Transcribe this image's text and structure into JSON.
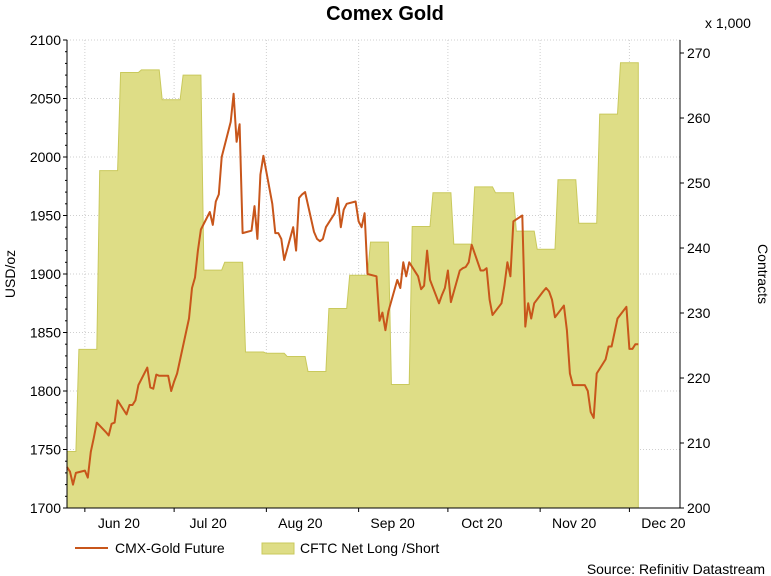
{
  "chart_data": {
    "type": "line",
    "title": "Comex Gold",
    "ylabel": "USD/oz",
    "y2label": "Contracts",
    "y2_multiplier_label": "x 1,000",
    "source": "Source: Refinitiv Datastream",
    "ylim": [
      1700,
      2100
    ],
    "y2lim": [
      200,
      272
    ],
    "yticks": [
      1700,
      1750,
      1800,
      1850,
      1900,
      1950,
      2000,
      2050,
      2100
    ],
    "y2ticks": [
      200,
      210,
      220,
      230,
      240,
      250,
      260,
      270
    ],
    "xlim": [
      "2020-05-26",
      "2020-12-18"
    ],
    "xticks": [
      {
        "label": "Jun 20",
        "date": "2020-06-01"
      },
      {
        "label": "Jul 20",
        "date": "2020-07-01"
      },
      {
        "label": "Aug 20",
        "date": "2020-08-01"
      },
      {
        "label": "Sep 20",
        "date": "2020-09-01"
      },
      {
        "label": "Oct 20",
        "date": "2020-10-01"
      },
      {
        "label": "Nov 20",
        "date": "2020-11-01"
      },
      {
        "label": "Dec 20",
        "date": "2020-12-01"
      }
    ],
    "grid": true,
    "legend_position": "bottom",
    "colors": {
      "line": "#c8561b",
      "area_fill": "#dedd86",
      "area_edge": "#c9c95c",
      "grid": "#cfcfcf"
    },
    "series": [
      {
        "name": "CMX-Gold Future",
        "type": "line",
        "axis": "left",
        "points": [
          [
            "2020-05-26",
            1735
          ],
          [
            "2020-05-27",
            1731
          ],
          [
            "2020-05-28",
            1720
          ],
          [
            "2020-05-29",
            1730
          ],
          [
            "2020-06-01",
            1732
          ],
          [
            "2020-06-02",
            1726
          ],
          [
            "2020-06-03",
            1748
          ],
          [
            "2020-06-04",
            1760
          ],
          [
            "2020-06-05",
            1773
          ],
          [
            "2020-06-08",
            1765
          ],
          [
            "2020-06-09",
            1762
          ],
          [
            "2020-06-10",
            1772
          ],
          [
            "2020-06-11",
            1773
          ],
          [
            "2020-06-12",
            1792
          ],
          [
            "2020-06-15",
            1780
          ],
          [
            "2020-06-16",
            1788
          ],
          [
            "2020-06-17",
            1788
          ],
          [
            "2020-06-18",
            1792
          ],
          [
            "2020-06-19",
            1805
          ],
          [
            "2020-06-22",
            1820
          ],
          [
            "2020-06-23",
            1803
          ],
          [
            "2020-06-24",
            1802
          ],
          [
            "2020-06-25",
            1814
          ],
          [
            "2020-06-26",
            1813
          ],
          [
            "2020-06-29",
            1813
          ],
          [
            "2020-06-30",
            1800
          ],
          [
            "2020-07-01",
            1808
          ],
          [
            "2020-07-02",
            1815
          ],
          [
            "2020-07-06",
            1862
          ],
          [
            "2020-07-07",
            1888
          ],
          [
            "2020-07-08",
            1897
          ],
          [
            "2020-07-09",
            1920
          ],
          [
            "2020-07-10",
            1938
          ],
          [
            "2020-07-13",
            1953
          ],
          [
            "2020-07-14",
            1942
          ],
          [
            "2020-07-15",
            1962
          ],
          [
            "2020-07-16",
            1968
          ],
          [
            "2020-07-17",
            2000
          ],
          [
            "2020-07-20",
            2030
          ],
          [
            "2020-07-21",
            2054
          ],
          [
            "2020-07-22",
            2013
          ],
          [
            "2020-07-23",
            2028
          ],
          [
            "2020-07-24",
            1935
          ],
          [
            "2020-07-27",
            1937
          ],
          [
            "2020-07-28",
            1958
          ],
          [
            "2020-07-29",
            1930
          ],
          [
            "2020-07-30",
            1985
          ],
          [
            "2020-07-31",
            2001
          ],
          [
            "2020-08-03",
            1960
          ],
          [
            "2020-08-04",
            1935
          ],
          [
            "2020-08-05",
            1935
          ],
          [
            "2020-08-06",
            1930
          ],
          [
            "2020-08-07",
            1912
          ],
          [
            "2020-08-10",
            1940
          ],
          [
            "2020-08-11",
            1920
          ],
          [
            "2020-08-12",
            1965
          ],
          [
            "2020-08-13",
            1968
          ],
          [
            "2020-08-14",
            1970
          ],
          [
            "2020-08-17",
            1936
          ],
          [
            "2020-08-18",
            1930
          ],
          [
            "2020-08-19",
            1928
          ],
          [
            "2020-08-20",
            1930
          ],
          [
            "2020-08-21",
            1940
          ],
          [
            "2020-08-24",
            1952
          ],
          [
            "2020-08-25",
            1965
          ],
          [
            "2020-08-26",
            1940
          ],
          [
            "2020-08-27",
            1955
          ],
          [
            "2020-08-28",
            1960
          ],
          [
            "2020-08-31",
            1962
          ],
          [
            "2020-09-01",
            1945
          ],
          [
            "2020-09-02",
            1940
          ],
          [
            "2020-09-03",
            1952
          ],
          [
            "2020-09-04",
            1900
          ],
          [
            "2020-09-07",
            1898
          ],
          [
            "2020-09-08",
            1860
          ],
          [
            "2020-09-09",
            1867
          ],
          [
            "2020-09-10",
            1852
          ],
          [
            "2020-09-11",
            1868
          ],
          [
            "2020-09-14",
            1895
          ],
          [
            "2020-09-15",
            1888
          ],
          [
            "2020-09-16",
            1910
          ],
          [
            "2020-09-17",
            1898
          ],
          [
            "2020-09-18",
            1910
          ],
          [
            "2020-09-21",
            1898
          ],
          [
            "2020-09-22",
            1887
          ],
          [
            "2020-09-23",
            1890
          ],
          [
            "2020-09-24",
            1920
          ],
          [
            "2020-09-25",
            1895
          ],
          [
            "2020-09-28",
            1875
          ],
          [
            "2020-09-29",
            1882
          ],
          [
            "2020-09-30",
            1888
          ],
          [
            "2020-10-01",
            1903
          ],
          [
            "2020-10-02",
            1876
          ],
          [
            "2020-10-05",
            1903
          ],
          [
            "2020-10-06",
            1905
          ],
          [
            "2020-10-07",
            1906
          ],
          [
            "2020-10-08",
            1910
          ],
          [
            "2020-10-09",
            1925
          ],
          [
            "2020-10-12",
            1903
          ],
          [
            "2020-10-13",
            1903
          ],
          [
            "2020-10-14",
            1905
          ],
          [
            "2020-10-15",
            1878
          ],
          [
            "2020-10-16",
            1865
          ],
          [
            "2020-10-19",
            1875
          ],
          [
            "2020-10-20",
            1890
          ],
          [
            "2020-10-21",
            1910
          ],
          [
            "2020-10-22",
            1898
          ],
          [
            "2020-10-23",
            1945
          ],
          [
            "2020-10-26",
            1950
          ],
          [
            "2020-10-27",
            1855
          ],
          [
            "2020-10-28",
            1875
          ],
          [
            "2020-10-29",
            1862
          ],
          [
            "2020-10-30",
            1875
          ],
          [
            "2020-11-02",
            1885
          ],
          [
            "2020-11-03",
            1888
          ],
          [
            "2020-11-04",
            1885
          ],
          [
            "2020-11-05",
            1878
          ],
          [
            "2020-11-06",
            1863
          ],
          [
            "2020-11-09",
            1873
          ],
          [
            "2020-11-10",
            1852
          ],
          [
            "2020-11-11",
            1815
          ],
          [
            "2020-11-12",
            1805
          ],
          [
            "2020-11-13",
            1805
          ],
          [
            "2020-11-16",
            1805
          ],
          [
            "2020-11-17",
            1800
          ],
          [
            "2020-11-18",
            1782
          ],
          [
            "2020-11-19",
            1777
          ],
          [
            "2020-11-20",
            1815
          ],
          [
            "2020-11-23",
            1827
          ],
          [
            "2020-11-24",
            1838
          ],
          [
            "2020-11-25",
            1838
          ],
          [
            "2020-11-27",
            1862
          ],
          [
            "2020-11-30",
            1872
          ],
          [
            "2020-12-01",
            1836
          ],
          [
            "2020-12-02",
            1836
          ],
          [
            "2020-12-03",
            1840
          ],
          [
            "2020-12-04",
            1840
          ]
        ]
      },
      {
        "name": "CFTC Net Long /Short",
        "type": "area",
        "axis": "right",
        "step": true,
        "points": [
          [
            "2020-05-26",
            208.7
          ],
          [
            "2020-05-29",
            208.7
          ],
          [
            "2020-05-30",
            224.4
          ],
          [
            "2020-06-05",
            224.4
          ],
          [
            "2020-06-06",
            251.9
          ],
          [
            "2020-06-12",
            251.9
          ],
          [
            "2020-06-13",
            267.0
          ],
          [
            "2020-06-19",
            267.0
          ],
          [
            "2020-06-20",
            267.4
          ],
          [
            "2020-06-26",
            267.4
          ],
          [
            "2020-06-27",
            262.8
          ],
          [
            "2020-07-03",
            262.8
          ],
          [
            "2020-07-04",
            266.6
          ],
          [
            "2020-07-10",
            266.6
          ],
          [
            "2020-07-11",
            236.6
          ],
          [
            "2020-07-17",
            236.6
          ],
          [
            "2020-07-18",
            237.8
          ],
          [
            "2020-07-24",
            237.8
          ],
          [
            "2020-07-25",
            224.0
          ],
          [
            "2020-07-31",
            224.0
          ],
          [
            "2020-08-01",
            223.8
          ],
          [
            "2020-08-07",
            223.8
          ],
          [
            "2020-08-08",
            223.3
          ],
          [
            "2020-08-14",
            223.3
          ],
          [
            "2020-08-15",
            221.0
          ],
          [
            "2020-08-21",
            221.0
          ],
          [
            "2020-08-22",
            230.7
          ],
          [
            "2020-08-28",
            230.7
          ],
          [
            "2020-08-29",
            235.8
          ],
          [
            "2020-09-04",
            235.8
          ],
          [
            "2020-09-05",
            240.9
          ],
          [
            "2020-09-11",
            240.9
          ],
          [
            "2020-09-12",
            219.0
          ],
          [
            "2020-09-18",
            219.0
          ],
          [
            "2020-09-19",
            243.3
          ],
          [
            "2020-09-25",
            243.3
          ],
          [
            "2020-09-26",
            248.5
          ],
          [
            "2020-10-02",
            248.5
          ],
          [
            "2020-10-03",
            240.6
          ],
          [
            "2020-10-09",
            240.6
          ],
          [
            "2020-10-10",
            249.4
          ],
          [
            "2020-10-16",
            249.4
          ],
          [
            "2020-10-17",
            248.5
          ],
          [
            "2020-10-23",
            248.5
          ],
          [
            "2020-10-24",
            242.6
          ],
          [
            "2020-10-30",
            242.6
          ],
          [
            "2020-10-31",
            239.8
          ],
          [
            "2020-11-06",
            239.8
          ],
          [
            "2020-11-07",
            250.5
          ],
          [
            "2020-11-13",
            250.5
          ],
          [
            "2020-11-14",
            243.8
          ],
          [
            "2020-11-20",
            243.8
          ],
          [
            "2020-11-21",
            260.6
          ],
          [
            "2020-11-27",
            260.6
          ],
          [
            "2020-11-28",
            268.5
          ],
          [
            "2020-12-04",
            268.5
          ]
        ]
      }
    ]
  }
}
